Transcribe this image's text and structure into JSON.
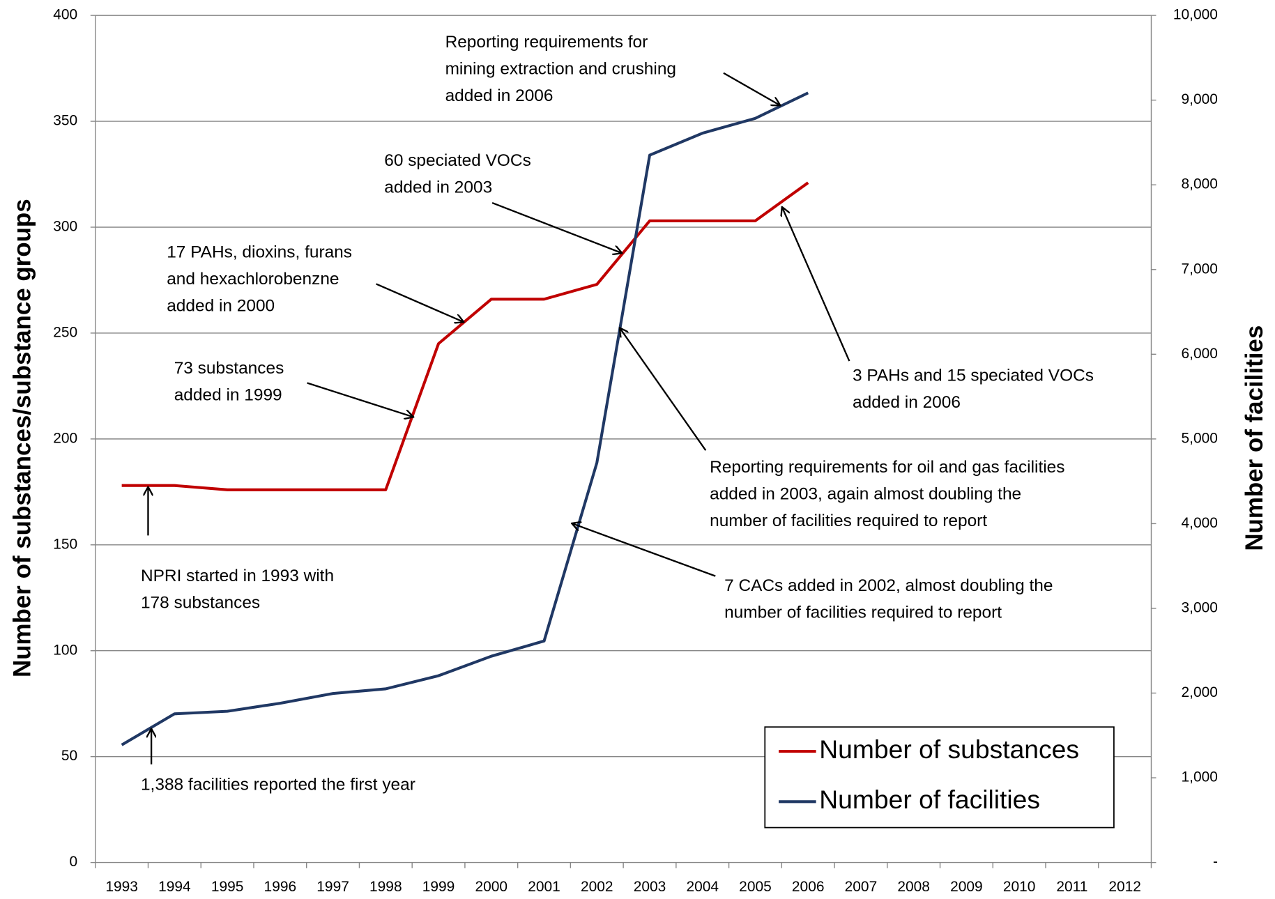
{
  "chart_data": {
    "type": "line",
    "categories": [
      "1993",
      "1994",
      "1995",
      "1996",
      "1997",
      "1998",
      "1999",
      "2000",
      "2001",
      "2002",
      "2003",
      "2004",
      "2005",
      "2006",
      "2007",
      "2008",
      "2009",
      "2010",
      "2011",
      "2012"
    ],
    "series": [
      {
        "name": "Number of substances",
        "color": "#c00000",
        "axis": "y",
        "values": [
          178,
          178,
          176,
          176,
          176,
          176,
          245,
          266,
          266,
          273,
          303,
          303,
          303,
          321,
          null,
          null,
          null,
          null,
          null,
          null
        ]
      },
      {
        "name": "Number of facilities",
        "color": "#203864",
        "axis": "y2",
        "values": [
          1388,
          1755,
          1785,
          1880,
          1995,
          2050,
          2205,
          2435,
          2615,
          4720,
          8350,
          8610,
          8785,
          9085,
          null,
          null,
          null,
          null,
          null,
          null
        ]
      }
    ],
    "ylabel": "Number of substances/substance groups",
    "y2label": "Number of facilities",
    "ylim": [
      0,
      400
    ],
    "yticks": [
      0,
      50,
      100,
      150,
      200,
      250,
      300,
      350,
      400
    ],
    "y2lim": [
      0,
      10000
    ],
    "y2ticks": [
      {
        "value": 0,
        "label": "-"
      },
      {
        "value": 1000,
        "label": "1,000"
      },
      {
        "value": 2000,
        "label": "2,000"
      },
      {
        "value": 3000,
        "label": "3,000"
      },
      {
        "value": 4000,
        "label": "4,000"
      },
      {
        "value": 5000,
        "label": "5,000"
      },
      {
        "value": 6000,
        "label": "6,000"
      },
      {
        "value": 7000,
        "label": "7,000"
      },
      {
        "value": 8000,
        "label": "8,000"
      },
      {
        "value": 9000,
        "label": "9,000"
      },
      {
        "value": 10000,
        "label": "10,000"
      }
    ],
    "grid": true,
    "legend": "lower right",
    "annotations": [
      [
        "Reporting requirements for",
        "mining extraction and crushing",
        "added in 2006"
      ],
      [
        "60 speciated VOCs",
        "added in 2003"
      ],
      [
        "17 PAHs, dioxins, furans",
        "and hexachlorobenzne",
        "added in 2000"
      ],
      [
        "73 substances",
        "added in 1999"
      ],
      [
        "NPRI started in 1993 with",
        "178 substances"
      ],
      [
        "1,388 facilities reported the first year"
      ],
      [
        "3 PAHs and 15 speciated VOCs",
        "added in 2006"
      ],
      [
        "Reporting requirements for oil and gas facilities",
        "added in 2003, again almost doubling the",
        "number of facilities required to report"
      ],
      [
        "7 CACs added in 2002, almost doubling the",
        "number of facilities required to report"
      ]
    ]
  }
}
